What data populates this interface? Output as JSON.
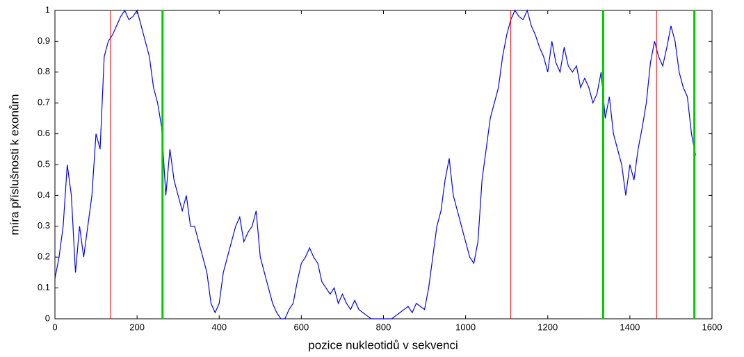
{
  "chart_data": {
    "type": "line",
    "xlabel": "pozice nukleotidů v sekvenci",
    "ylabel": "míra příslušnosti k exonům",
    "xlim": [
      0,
      1600
    ],
    "xticks": [
      0,
      200,
      400,
      600,
      800,
      1000,
      1200,
      1400,
      1600
    ],
    "ylim": [
      0,
      1
    ],
    "yticks": [
      0,
      0.1,
      0.2,
      0.3,
      0.4,
      0.5,
      0.6,
      0.7,
      0.8,
      0.9,
      1
    ],
    "x": [
      0,
      10,
      20,
      30,
      40,
      50,
      60,
      70,
      80,
      90,
      100,
      110,
      120,
      130,
      140,
      150,
      160,
      170,
      180,
      190,
      200,
      210,
      220,
      230,
      240,
      250,
      260,
      270,
      280,
      290,
      300,
      310,
      320,
      330,
      340,
      350,
      360,
      370,
      380,
      390,
      400,
      410,
      420,
      430,
      440,
      450,
      460,
      470,
      480,
      490,
      500,
      510,
      520,
      530,
      540,
      550,
      560,
      570,
      580,
      590,
      600,
      610,
      620,
      630,
      640,
      650,
      660,
      670,
      680,
      690,
      700,
      710,
      720,
      730,
      740,
      750,
      760,
      770,
      780,
      790,
      800,
      810,
      820,
      830,
      840,
      850,
      860,
      870,
      880,
      890,
      900,
      910,
      920,
      930,
      940,
      950,
      960,
      970,
      980,
      990,
      1000,
      1010,
      1020,
      1030,
      1040,
      1050,
      1060,
      1070,
      1080,
      1090,
      1100,
      1110,
      1120,
      1130,
      1140,
      1150,
      1160,
      1170,
      1180,
      1190,
      1200,
      1210,
      1220,
      1230,
      1240,
      1250,
      1260,
      1270,
      1280,
      1290,
      1300,
      1310,
      1320,
      1330,
      1340,
      1350,
      1360,
      1370,
      1380,
      1390,
      1400,
      1410,
      1420,
      1430,
      1440,
      1450,
      1460,
      1470,
      1480,
      1490,
      1500,
      1510,
      1520,
      1530,
      1540,
      1550,
      1560
    ],
    "series": [
      {
        "color": "#0000ff",
        "values": [
          0.13,
          0.2,
          0.3,
          0.5,
          0.4,
          0.15,
          0.3,
          0.2,
          0.3,
          0.4,
          0.6,
          0.55,
          0.85,
          0.9,
          0.92,
          0.95,
          0.98,
          1,
          0.97,
          0.98,
          1,
          0.95,
          0.9,
          0.85,
          0.75,
          0.7,
          0.62,
          0.4,
          0.55,
          0.45,
          0.4,
          0.35,
          0.4,
          0.3,
          0.3,
          0.25,
          0.2,
          0.15,
          0.05,
          0.02,
          0.05,
          0.15,
          0.2,
          0.25,
          0.3,
          0.33,
          0.25,
          0.28,
          0.3,
          0.35,
          0.2,
          0.15,
          0.1,
          0.05,
          0.02,
          0,
          0,
          0.03,
          0.05,
          0.12,
          0.18,
          0.2,
          0.23,
          0.2,
          0.18,
          0.12,
          0.1,
          0.08,
          0.1,
          0.05,
          0.08,
          0.05,
          0.03,
          0.06,
          0.03,
          0.02,
          0.01,
          0,
          0,
          0,
          0,
          0,
          0,
          0.01,
          0.02,
          0.03,
          0.04,
          0.02,
          0.05,
          0.04,
          0.03,
          0.1,
          0.2,
          0.3,
          0.35,
          0.45,
          0.52,
          0.4,
          0.35,
          0.3,
          0.25,
          0.2,
          0.18,
          0.25,
          0.45,
          0.55,
          0.65,
          0.7,
          0.75,
          0.85,
          0.92,
          0.97,
          1,
          0.98,
          0.97,
          1,
          0.95,
          0.92,
          0.88,
          0.85,
          0.8,
          0.9,
          0.83,
          0.8,
          0.88,
          0.82,
          0.8,
          0.82,
          0.75,
          0.78,
          0.75,
          0.7,
          0.73,
          0.8,
          0.65,
          0.72,
          0.6,
          0.55,
          0.5,
          0.4,
          0.5,
          0.45,
          0.55,
          0.62,
          0.7,
          0.83,
          0.9,
          0.85,
          0.82,
          0.88,
          0.95,
          0.9,
          0.8,
          0.75,
          0.72,
          0.6,
          0.53
        ]
      }
    ],
    "vlines": [
      {
        "x": 135,
        "color": "#ff0000"
      },
      {
        "x": 262,
        "color": "#00cc00"
      },
      {
        "x": 1110,
        "color": "#ff0000"
      },
      {
        "x": 1335,
        "color": "#00cc00"
      },
      {
        "x": 1465,
        "color": "#ff0000"
      },
      {
        "x": 1557,
        "color": "#00cc00"
      }
    ]
  }
}
